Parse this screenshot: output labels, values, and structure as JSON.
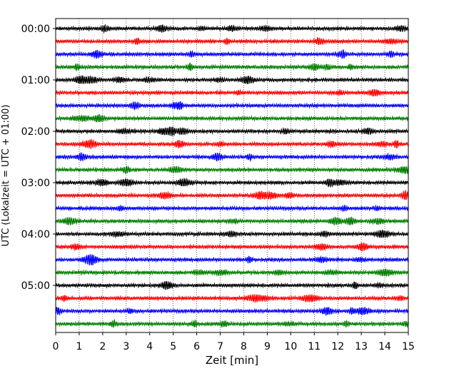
{
  "chart_data": {
    "type": "line",
    "title": "",
    "xlabel": "Zeit  [min]",
    "ylabel": "UTC (Lokalzeit = UTC + 01:00)",
    "xlim": [
      0,
      15
    ],
    "x_ticks": [
      0,
      1,
      2,
      3,
      4,
      5,
      6,
      7,
      8,
      9,
      10,
      11,
      12,
      13,
      14,
      15
    ],
    "y_tick_labels": [
      "00:00",
      "01:00",
      "02:00",
      "03:00",
      "04:00",
      "05:00"
    ],
    "trace_interval_minutes": 15,
    "trace_count": 24,
    "color_cycle": [
      "#000000",
      "#ff0000",
      "#0000ff",
      "#007f00"
    ],
    "grid": {
      "vertical": true,
      "style": "dotted"
    }
  }
}
